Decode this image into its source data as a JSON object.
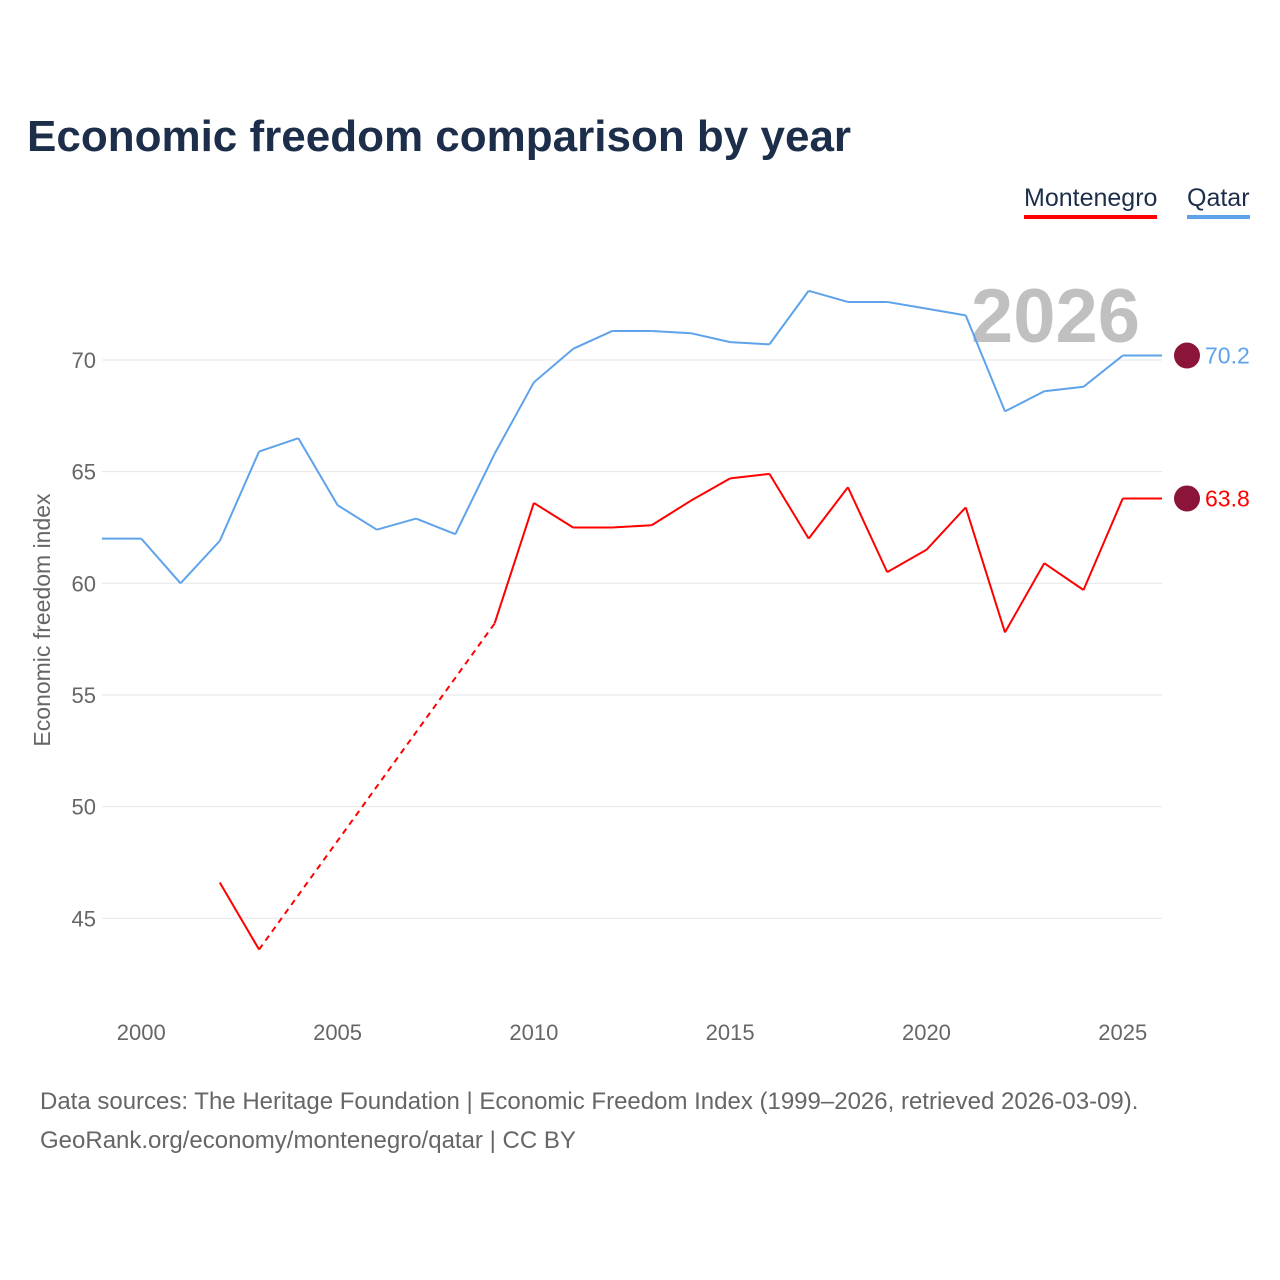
{
  "chart_data": {
    "type": "line",
    "title": "Economic freedom comparison by year",
    "ylabel": "Economic freedom index",
    "xlabel": "",
    "xlim": [
      1999,
      2026
    ],
    "ylim": [
      41.5,
      74.5
    ],
    "xticks": [
      2000,
      2005,
      2010,
      2015,
      2020,
      2025
    ],
    "yticks": [
      45,
      50,
      55,
      60,
      65,
      70
    ],
    "grid": true,
    "legend_position": "top-right",
    "annotation": "2026",
    "x": [
      1999,
      2000,
      2001,
      2002,
      2003,
      2004,
      2005,
      2006,
      2007,
      2008,
      2009,
      2010,
      2011,
      2012,
      2013,
      2014,
      2015,
      2016,
      2017,
      2018,
      2019,
      2020,
      2021,
      2022,
      2023,
      2024,
      2025,
      2026
    ],
    "series": [
      {
        "name": "Montenegro",
        "color": "#ff0000",
        "end_label": "63.8",
        "values": [
          null,
          null,
          null,
          46.6,
          43.6,
          null,
          null,
          null,
          null,
          null,
          58.2,
          63.6,
          62.5,
          62.5,
          62.6,
          63.7,
          64.7,
          64.9,
          62.0,
          64.3,
          60.5,
          61.5,
          63.4,
          57.8,
          60.9,
          59.7,
          63.8,
          63.8
        ]
      },
      {
        "name": "Qatar",
        "color": "#5ea3ea",
        "end_label": "70.2",
        "values": [
          62.0,
          62.0,
          60.0,
          61.9,
          65.9,
          66.5,
          63.5,
          62.4,
          62.9,
          62.2,
          65.8,
          69.0,
          70.5,
          71.3,
          71.3,
          71.2,
          70.8,
          70.7,
          73.1,
          72.6,
          72.6,
          72.3,
          72.0,
          67.7,
          68.6,
          68.8,
          70.2,
          70.2
        ]
      }
    ]
  },
  "footer": {
    "line1": "Data sources: The Heritage Foundation | Economic Freedom Index (1999–2026, retrieved 2026-03-09).",
    "line2": "GeoRank.org/economy/montenegro/qatar | CC BY"
  }
}
